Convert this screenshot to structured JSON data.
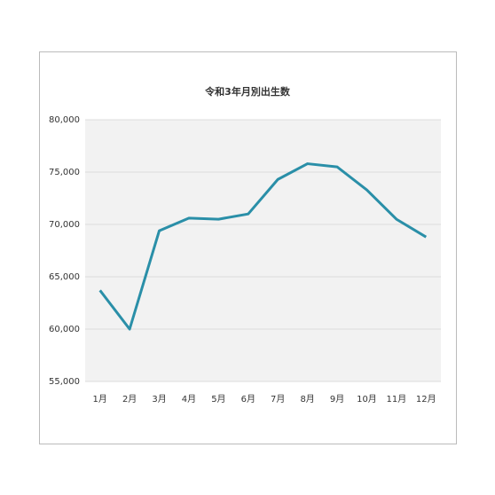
{
  "chart_data": {
    "type": "line",
    "title": "令和3年月別出生数",
    "categories": [
      "1月",
      "2月",
      "3月",
      "4月",
      "5月",
      "6月",
      "7月",
      "8月",
      "9月",
      "10月",
      "11月",
      "12月"
    ],
    "series": [
      {
        "name": "出生数",
        "color": "#2a8fa8",
        "values": [
          63700,
          60000,
          69400,
          70600,
          70500,
          71000,
          74300,
          75800,
          75500,
          73300,
          70500,
          68800
        ]
      }
    ],
    "ylim": [
      55000,
      80000
    ],
    "yticks": [
      {
        "value": 55000,
        "label": "55,000"
      },
      {
        "value": 60000,
        "label": "60,000"
      },
      {
        "value": 65000,
        "label": "65,000"
      },
      {
        "value": 70000,
        "label": "70,000"
      },
      {
        "value": 75000,
        "label": "75,000"
      },
      {
        "value": 80000,
        "label": "80,000"
      }
    ],
    "grid": true
  }
}
